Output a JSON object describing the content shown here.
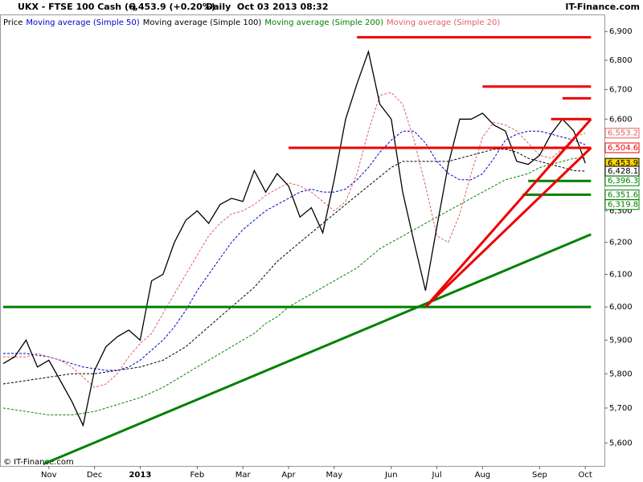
{
  "chart_data": {
    "type": "line",
    "title": "UKX - FTSE 100 Cash (-)",
    "quote": "6,453.9 (+0.20%)",
    "period": "Daily  Oct 03 2013 08:32",
    "brand": "IT-Finance.com",
    "copyright": "© IT-Finance.com",
    "log_scale": true,
    "ylim": [
      5535,
      6960
    ],
    "yticks": [
      {
        "value": 5600,
        "label": "5,600"
      },
      {
        "value": 5700,
        "label": "5,700"
      },
      {
        "value": 5800,
        "label": "5,800"
      },
      {
        "value": 5900,
        "label": "5,900"
      },
      {
        "value": 6000,
        "label": "6,000"
      },
      {
        "value": 6100,
        "label": "6,100"
      },
      {
        "value": 6200,
        "label": "6,200"
      },
      {
        "value": 6300,
        "label": "6,300"
      },
      {
        "value": 6400,
        "label": "6,400"
      },
      {
        "value": 6500,
        "label": "6,500"
      },
      {
        "value": 6600,
        "label": "6,600"
      },
      {
        "value": 6700,
        "label": "6,700"
      },
      {
        "value": 6800,
        "label": "6,800"
      },
      {
        "value": 6900,
        "label": "6,900"
      }
    ],
    "categories": [
      null,
      null,
      null,
      null,
      "Nov",
      null,
      null,
      null,
      "Dec",
      null,
      null,
      null,
      "2013",
      null,
      null,
      null,
      null,
      "Feb",
      null,
      null,
      null,
      "Mar",
      null,
      null,
      null,
      "Apr",
      null,
      null,
      null,
      "May",
      null,
      null,
      null,
      null,
      "Jun",
      null,
      null,
      null,
      "Jul",
      null,
      null,
      null,
      "Aug",
      null,
      null,
      null,
      null,
      "Sep",
      null,
      null,
      null,
      "Oct"
    ],
    "series": [
      {
        "name": "Price",
        "color": "#000000",
        "dash": false,
        "values": [
          5830,
          5850,
          5900,
          5820,
          5840,
          5780,
          5720,
          5650,
          5810,
          5880,
          5910,
          5930,
          5900,
          6080,
          6100,
          6200,
          6270,
          6300,
          6260,
          6320,
          6340,
          6330,
          6430,
          6360,
          6420,
          6380,
          6280,
          6310,
          6230,
          6400,
          6600,
          6720,
          6830,
          6650,
          6600,
          6360,
          6200,
          6050,
          6250,
          6450,
          6600,
          6600,
          6620,
          6580,
          6560,
          6460,
          6450,
          6480,
          6550,
          6600,
          6560,
          6453.9
        ]
      },
      {
        "name": "Moving average (Simple 50)",
        "color": "#0000cc",
        "dash": true,
        "values": [
          5860,
          5860,
          5860,
          5855,
          5850,
          5840,
          5830,
          5820,
          5815,
          5810,
          5810,
          5820,
          5840,
          5870,
          5900,
          5940,
          5990,
          6050,
          6100,
          6150,
          6200,
          6240,
          6270,
          6300,
          6320,
          6340,
          6360,
          6370,
          6360,
          6360,
          6370,
          6400,
          6440,
          6490,
          6530,
          6560,
          6560,
          6520,
          6460,
          6420,
          6400,
          6400,
          6420,
          6470,
          6530,
          6550,
          6560,
          6560,
          6550,
          6540,
          6530,
          6515
        ]
      },
      {
        "name": "Moving average (Simple 100)",
        "color": "#000000",
        "dash": true,
        "values": [
          5770,
          5775,
          5780,
          5785,
          5790,
          5795,
          5800,
          5800,
          5800,
          5805,
          5810,
          5815,
          5820,
          5830,
          5840,
          5860,
          5880,
          5910,
          5940,
          5970,
          6000,
          6030,
          6060,
          6100,
          6140,
          6170,
          6200,
          6230,
          6260,
          6290,
          6320,
          6350,
          6380,
          6410,
          6440,
          6460,
          6460,
          6460,
          6460,
          6460,
          6470,
          6480,
          6490,
          6500,
          6500,
          6490,
          6470,
          6460,
          6450,
          6440,
          6430,
          6428.1
        ]
      },
      {
        "name": "Moving average (Simple 200)",
        "color": "#008000",
        "dash": true,
        "values": [
          5700,
          5695,
          5690,
          5685,
          5680,
          5680,
          5680,
          5685,
          5690,
          5700,
          5710,
          5720,
          5730,
          5745,
          5760,
          5780,
          5800,
          5820,
          5840,
          5860,
          5880,
          5900,
          5920,
          5950,
          5970,
          6000,
          6020,
          6040,
          6060,
          6080,
          6100,
          6120,
          6150,
          6180,
          6200,
          6220,
          6240,
          6260,
          6280,
          6300,
          6320,
          6340,
          6360,
          6380,
          6400,
          6410,
          6420,
          6440,
          6450,
          6460,
          6470,
          6470
        ]
      },
      {
        "name": "Moving average (Simple 20)",
        "color": "#e06060",
        "dash": true,
        "values": [
          5850,
          5850,
          5850,
          5860,
          5850,
          5840,
          5820,
          5790,
          5760,
          5770,
          5800,
          5850,
          5890,
          5920,
          5980,
          6040,
          6100,
          6160,
          6220,
          6260,
          6290,
          6300,
          6320,
          6350,
          6370,
          6390,
          6380,
          6360,
          6330,
          6300,
          6330,
          6420,
          6560,
          6680,
          6690,
          6650,
          6530,
          6380,
          6220,
          6200,
          6290,
          6420,
          6540,
          6590,
          6580,
          6560,
          6520,
          6480,
          6470,
          6500,
          6540,
          6553.2
        ]
      }
    ],
    "levels": [
      {
        "x": [
          31,
          51.5
        ],
        "value": 6880,
        "color": "#ee0000"
      },
      {
        "x": [
          42,
          51.5
        ],
        "value": 6710,
        "color": "#ee0000"
      },
      {
        "x": [
          49,
          51.5
        ],
        "value": 6670,
        "color": "#ee0000"
      },
      {
        "x": [
          48,
          51.5
        ],
        "value": 6600,
        "color": "#ee0000"
      },
      {
        "x": [
          25,
          51.5
        ],
        "value": 6504.6,
        "color": "#ee0000"
      },
      {
        "x": [
          0,
          51.5
        ],
        "value": 6000,
        "color": "#008000"
      },
      {
        "x": [
          46,
          51.5
        ],
        "value": 6396.3,
        "color": "#008000"
      },
      {
        "x": [
          45.5,
          51.5
        ],
        "value": 6351.6,
        "color": "#008000"
      }
    ],
    "trendlines": [
      {
        "x": [
          37,
          51.5
        ],
        "values": [
          6000,
          6600
        ],
        "color": "#ee0000"
      },
      {
        "x": [
          3.5,
          51.5
        ],
        "values": [
          5540,
          6225
        ],
        "color": "#008000"
      },
      {
        "x": [
          37,
          51.5
        ],
        "values": [
          6000,
          6504.6
        ],
        "color": "#ee0000"
      }
    ],
    "price_labels": [
      {
        "value": 6553.2,
        "label": "6,553.2",
        "color": "#e06060",
        "fill": "#ffffff"
      },
      {
        "value": 6504.6,
        "label": "6,504.6",
        "color": "#ee0000",
        "fill": "#ffffff"
      },
      {
        "value": 6453.9,
        "label": "6,453.9",
        "color": "#000000",
        "fill": "#ffd700"
      },
      {
        "value": 6428.1,
        "label": "6,428.1",
        "color": "#000000",
        "fill": "#ffffff"
      },
      {
        "value": 6396.3,
        "label": "6,396.3",
        "color": "#008000",
        "fill": "#ffffff"
      },
      {
        "value": 6351.6,
        "label": "6,351.6",
        "color": "#008000",
        "fill": "#ffffff"
      },
      {
        "value": 6319.8,
        "label": "6,319.8",
        "color": "#008000",
        "fill": "#ffffff"
      }
    ]
  }
}
